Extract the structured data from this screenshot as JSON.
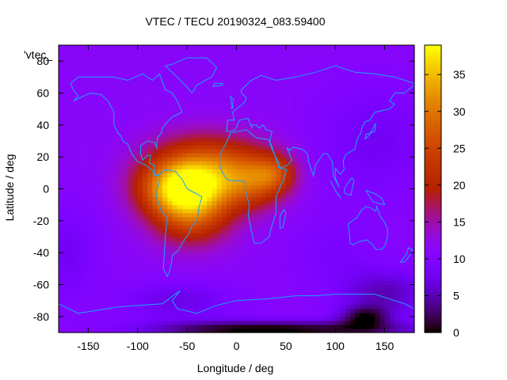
{
  "chart_data": {
    "type": "heatmap",
    "title": "VTEC / TECU 20190324_083.59400",
    "xlabel": "Longitude / deg",
    "ylabel": "Latitude / deg",
    "legend_label": "'vtec_",
    "xlim": [
      -180,
      180
    ],
    "ylim": [
      -90,
      90
    ],
    "xticks": [
      -150,
      -100,
      -50,
      0,
      50,
      100,
      150
    ],
    "yticks": [
      -80,
      -60,
      -40,
      -20,
      0,
      20,
      40,
      60,
      80
    ],
    "colorbar": {
      "range": [
        0,
        39
      ],
      "ticks": [
        0,
        5,
        10,
        15,
        20,
        25,
        30,
        35
      ]
    },
    "grid": false,
    "background_value": 11,
    "blobs": [
      {
        "lon": -30,
        "lat": 15,
        "value": 28,
        "sigma_lon": 40,
        "sigma_lat": 14
      },
      {
        "lon": -45,
        "lat": -15,
        "value": 29,
        "sigma_lon": 28,
        "sigma_lat": 14
      },
      {
        "lon": -70,
        "lat": 0,
        "value": 21,
        "sigma_lon": 25,
        "sigma_lat": 12
      },
      {
        "lon": 20,
        "lat": 5,
        "value": 22,
        "sigma_lon": 22,
        "sigma_lat": 12
      },
      {
        "lon": -40,
        "lat": 2,
        "value": 25,
        "sigma_lon": 30,
        "sigma_lat": 12
      },
      {
        "lon": 40,
        "lat": 10,
        "value": 16,
        "sigma_lon": 15,
        "sigma_lat": 8
      }
    ],
    "lows": [
      {
        "lon": 130,
        "lat": -80,
        "value": -9,
        "sigma_lon": 18,
        "sigma_lat": 5
      },
      {
        "lon": 80,
        "lat": -88,
        "value": -9,
        "sigma_lon": 80,
        "sigma_lat": 4
      },
      {
        "lon": 150,
        "lat": -65,
        "value": -6,
        "sigma_lon": 30,
        "sigma_lat": 10
      },
      {
        "lon": -20,
        "lat": -88,
        "value": -6,
        "sigma_lon": 60,
        "sigma_lat": 4
      },
      {
        "lon": 140,
        "lat": 30,
        "value": -3,
        "sigma_lon": 40,
        "sigma_lat": 25
      },
      {
        "lon": -170,
        "lat": -40,
        "value": -3,
        "sigma_lon": 20,
        "sigma_lat": 20
      },
      {
        "lon": 100,
        "lat": -40,
        "value": -2,
        "sigma_lon": 30,
        "sigma_lat": 15
      },
      {
        "lon": -60,
        "lat": -70,
        "value": -4,
        "sigma_lon": 40,
        "sigma_lat": 8
      }
    ],
    "coastlines": [
      [
        [
          -168,
          66
        ],
        [
          -160,
          70
        ],
        [
          -140,
          70
        ],
        [
          -125,
          70
        ],
        [
          -110,
          68
        ],
        [
          -95,
          72
        ],
        [
          -85,
          68
        ],
        [
          -78,
          72
        ],
        [
          -72,
          62
        ],
        [
          -65,
          60
        ],
        [
          -60,
          55
        ],
        [
          -55,
          48
        ],
        [
          -65,
          45
        ],
        [
          -70,
          42
        ],
        [
          -75,
          38
        ],
        [
          -76,
          35
        ],
        [
          -80,
          32
        ],
        [
          -81,
          27
        ],
        [
          -80,
          25
        ],
        [
          -83,
          29
        ],
        [
          -90,
          30
        ],
        [
          -97,
          27
        ],
        [
          -97,
          22
        ],
        [
          -95,
          18
        ],
        [
          -90,
          21
        ],
        [
          -87,
          21
        ],
        [
          -88,
          16
        ],
        [
          -83,
          15
        ],
        [
          -83,
          10
        ],
        [
          -80,
          8
        ],
        [
          -78,
          9
        ],
        [
          -82,
          8
        ],
        [
          -86,
          12
        ],
        [
          -92,
          15
        ],
        [
          -100,
          17
        ],
        [
          -106,
          22
        ],
        [
          -110,
          28
        ],
        [
          -115,
          30
        ],
        [
          -117,
          33
        ],
        [
          -120,
          35
        ],
        [
          -124,
          40
        ],
        [
          -124,
          48
        ],
        [
          -130,
          55
        ],
        [
          -137,
          59
        ],
        [
          -148,
          60
        ],
        [
          -155,
          58
        ],
        [
          -165,
          55
        ],
        [
          -160,
          58
        ],
        [
          -165,
          62
        ],
        [
          -168,
          66
        ]
      ],
      [
        [
          -78,
          9
        ],
        [
          -72,
          12
        ],
        [
          -62,
          11
        ],
        [
          -55,
          6
        ],
        [
          -50,
          0
        ],
        [
          -44,
          -2
        ],
        [
          -35,
          -5
        ],
        [
          -38,
          -12
        ],
        [
          -40,
          -20
        ],
        [
          -45,
          -23
        ],
        [
          -48,
          -28
        ],
        [
          -55,
          -34
        ],
        [
          -58,
          -38
        ],
        [
          -65,
          -42
        ],
        [
          -66,
          -47
        ],
        [
          -68,
          -52
        ],
        [
          -70,
          -55
        ],
        [
          -74,
          -50
        ],
        [
          -73,
          -40
        ],
        [
          -72,
          -30
        ],
        [
          -70,
          -18
        ],
        [
          -76,
          -14
        ],
        [
          -81,
          -5
        ],
        [
          -80,
          0
        ],
        [
          -78,
          5
        ],
        [
          -78,
          9
        ]
      ],
      [
        [
          -45,
          60
        ],
        [
          -40,
          65
        ],
        [
          -25,
          70
        ],
        [
          -20,
          76
        ],
        [
          -30,
          82
        ],
        [
          -50,
          82
        ],
        [
          -65,
          78
        ],
        [
          -72,
          77
        ],
        [
          -60,
          70
        ],
        [
          -52,
          65
        ],
        [
          -45,
          60
        ]
      ],
      [
        [
          -17,
          15
        ],
        [
          -17,
          21
        ],
        [
          -10,
          29
        ],
        [
          -6,
          35
        ],
        [
          10,
          37
        ],
        [
          20,
          32
        ],
        [
          32,
          31
        ],
        [
          35,
          28
        ],
        [
          43,
          13
        ],
        [
          51,
          12
        ],
        [
          45,
          2
        ],
        [
          40,
          -5
        ],
        [
          40,
          -15
        ],
        [
          35,
          -25
        ],
        [
          33,
          -30
        ],
        [
          25,
          -34
        ],
        [
          18,
          -34
        ],
        [
          15,
          -26
        ],
        [
          12,
          -17
        ],
        [
          13,
          -10
        ],
        [
          9,
          -1
        ],
        [
          9,
          4
        ],
        [
          5,
          5
        ],
        [
          -5,
          5
        ],
        [
          -10,
          6
        ],
        [
          -15,
          11
        ],
        [
          -17,
          15
        ]
      ],
      [
        [
          -10,
          36
        ],
        [
          -9,
          43
        ],
        [
          -2,
          43
        ],
        [
          -4,
          48
        ],
        [
          2,
          51
        ],
        [
          8,
          54
        ],
        [
          10,
          57
        ],
        [
          5,
          60
        ],
        [
          5,
          62
        ],
        [
          15,
          68
        ],
        [
          25,
          71
        ],
        [
          40,
          68
        ],
        [
          60,
          70
        ],
        [
          80,
          73
        ],
        [
          100,
          77
        ],
        [
          120,
          73
        ],
        [
          140,
          72
        ],
        [
          160,
          70
        ],
        [
          180,
          66
        ]
      ],
      [
        [
          180,
          65
        ],
        [
          170,
          60
        ],
        [
          160,
          60
        ],
        [
          155,
          55
        ],
        [
          160,
          53
        ],
        [
          155,
          50
        ],
        [
          140,
          48
        ],
        [
          135,
          43
        ],
        [
          130,
          42
        ],
        [
          127,
          38
        ],
        [
          126,
          35
        ],
        [
          122,
          31
        ],
        [
          120,
          25
        ],
        [
          110,
          21
        ],
        [
          108,
          17
        ],
        [
          109,
          12
        ],
        [
          105,
          9
        ],
        [
          100,
          13
        ],
        [
          100,
          7
        ],
        [
          104,
          1
        ],
        [
          98,
          8
        ],
        [
          97,
          17
        ],
        [
          92,
          22
        ],
        [
          88,
          22
        ],
        [
          80,
          15
        ],
        [
          78,
          8
        ],
        [
          73,
          17
        ],
        [
          72,
          22
        ],
        [
          66,
          25
        ],
        [
          57,
          26
        ],
        [
          54,
          24
        ],
        [
          51,
          26
        ],
        [
          56,
          18
        ],
        [
          52,
          15
        ],
        [
          44,
          13
        ],
        [
          43,
          16
        ],
        [
          38,
          22
        ],
        [
          34,
          28
        ],
        [
          34,
          31
        ],
        [
          36,
          36
        ],
        [
          30,
          37
        ],
        [
          27,
          40
        ],
        [
          23,
          38
        ],
        [
          20,
          40
        ],
        [
          15,
          40
        ],
        [
          16,
          38
        ],
        [
          13,
          42
        ],
        [
          12,
          44
        ],
        [
          10,
          44
        ],
        [
          3,
          43
        ],
        [
          -1,
          37
        ],
        [
          -6,
          36
        ],
        [
          -10,
          36
        ]
      ],
      [
        [
          113,
          -22
        ],
        [
          114,
          -26
        ],
        [
          115,
          -34
        ],
        [
          118,
          -35
        ],
        [
          124,
          -33
        ],
        [
          132,
          -32
        ],
        [
          138,
          -35
        ],
        [
          141,
          -38
        ],
        [
          147,
          -38
        ],
        [
          150,
          -36
        ],
        [
          153,
          -30
        ],
        [
          153,
          -25
        ],
        [
          149,
          -20
        ],
        [
          146,
          -18
        ],
        [
          142,
          -11
        ],
        [
          141,
          -14
        ],
        [
          136,
          -12
        ],
        [
          131,
          -11
        ],
        [
          126,
          -14
        ],
        [
          122,
          -18
        ],
        [
          113,
          -22
        ]
      ],
      [
        [
          -180,
          -72
        ],
        [
          -160,
          -78
        ],
        [
          -140,
          -76
        ],
        [
          -120,
          -74
        ],
        [
          -100,
          -73
        ],
        [
          -75,
          -72
        ],
        [
          -60,
          -65
        ],
        [
          -57,
          -64
        ],
        [
          -65,
          -70
        ],
        [
          -60,
          -75
        ],
        [
          -40,
          -78
        ],
        [
          -20,
          -73
        ],
        [
          0,
          -70
        ],
        [
          30,
          -69
        ],
        [
          60,
          -67
        ],
        [
          80,
          -67
        ],
        [
          100,
          -66
        ],
        [
          120,
          -66
        ],
        [
          140,
          -66
        ],
        [
          160,
          -70
        ],
        [
          170,
          -72
        ],
        [
          180,
          -75
        ]
      ],
      [
        [
          -5,
          50
        ],
        [
          -3,
          56
        ],
        [
          -6,
          58
        ],
        [
          -5,
          53
        ],
        [
          -3,
          51
        ],
        [
          -5,
          50
        ]
      ],
      [
        [
          130,
          31
        ],
        [
          131,
          34
        ],
        [
          136,
          35
        ],
        [
          140,
          36
        ],
        [
          141,
          41
        ],
        [
          140,
          40
        ],
        [
          135,
          34
        ],
        [
          130,
          31
        ]
      ],
      [
        [
          44,
          -25
        ],
        [
          47,
          -24
        ],
        [
          50,
          -15
        ],
        [
          48,
          -13
        ],
        [
          44,
          -17
        ],
        [
          44,
          -25
        ]
      ],
      [
        [
          95,
          5
        ],
        [
          102,
          -3
        ],
        [
          106,
          -6
        ],
        [
          101,
          -2
        ],
        [
          95,
          5
        ]
      ],
      [
        [
          109,
          -1
        ],
        [
          111,
          2
        ],
        [
          117,
          7
        ],
        [
          119,
          5
        ],
        [
          117,
          0
        ],
        [
          116,
          -4
        ],
        [
          110,
          -3
        ],
        [
          109,
          -1
        ]
      ],
      [
        [
          131,
          -1
        ],
        [
          140,
          -3
        ],
        [
          147,
          -6
        ],
        [
          150,
          -10
        ],
        [
          143,
          -9
        ],
        [
          138,
          -8
        ],
        [
          131,
          -1
        ]
      ],
      [
        [
          166,
          -46
        ],
        [
          172,
          -41
        ],
        [
          174,
          -37
        ],
        [
          178,
          -38
        ],
        [
          175,
          -42
        ],
        [
          170,
          -46
        ],
        [
          166,
          -46
        ]
      ],
      [
        [
          -24,
          64
        ],
        [
          -14,
          65
        ],
        [
          -14,
          66
        ],
        [
          -22,
          66
        ],
        [
          -24,
          64
        ]
      ]
    ]
  }
}
